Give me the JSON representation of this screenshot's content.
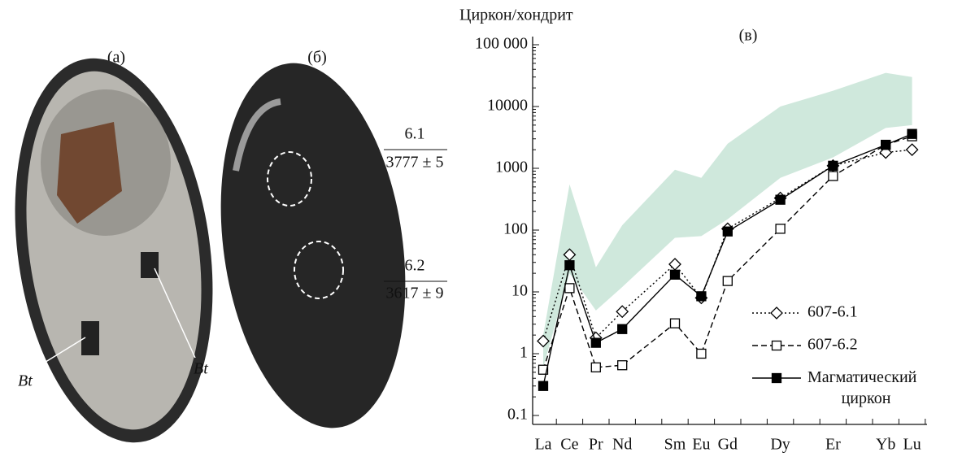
{
  "panels": {
    "a": {
      "label": "(а)",
      "bt_left": "Bt",
      "bt_right": "Bt"
    },
    "b": {
      "label": "(б)",
      "spots": [
        {
          "id": "6.1",
          "age": "3777 ± 5"
        },
        {
          "id": "6.2",
          "age": "3617 ± 9"
        }
      ]
    }
  },
  "chart_data": {
    "type": "line",
    "title": "(в)",
    "y_label": "Циркон/хондрит",
    "log_y": true,
    "categories": [
      "La",
      "Ce",
      "Pr",
      "Nd",
      "Sm",
      "Eu",
      "Gd",
      "Dy",
      "Er",
      "Yb",
      "Lu"
    ],
    "ylim": [
      0.1,
      100000
    ],
    "yticks": [
      0.1,
      1,
      10,
      100,
      1000,
      10000,
      {
        "value": 100000,
        "label": "100 000"
      }
    ],
    "band": {
      "color": "#cfe8dc",
      "lower": [
        0.6,
        20,
        5,
        12,
        75,
        80,
        150,
        700,
        1500,
        4500,
        5000
      ],
      "upper": [
        2,
        550,
        25,
        120,
        950,
        700,
        2500,
        10000,
        18000,
        35000,
        30000
      ]
    },
    "series": [
      {
        "name": "607-6.1",
        "color": "#000000",
        "marker": "diamond",
        "dash": "dotted",
        "values": [
          1.6,
          40,
          1.8,
          4.8,
          28,
          8,
          105,
          330,
          1100,
          1800,
          2000
        ]
      },
      {
        "name": "607-6.2",
        "color": "#000000",
        "marker": "open-square",
        "dash": "dashed",
        "values": [
          0.55,
          11.5,
          0.6,
          0.65,
          3.1,
          1.0,
          15,
          105,
          750,
          2400,
          3300
        ]
      },
      {
        "name": "Магматический циркон",
        "color": "#000000",
        "marker": "filled-square",
        "dash": "solid",
        "values": [
          0.3,
          27,
          1.5,
          2.5,
          19,
          8.5,
          95,
          310,
          1100,
          2400,
          3600
        ]
      }
    ]
  }
}
